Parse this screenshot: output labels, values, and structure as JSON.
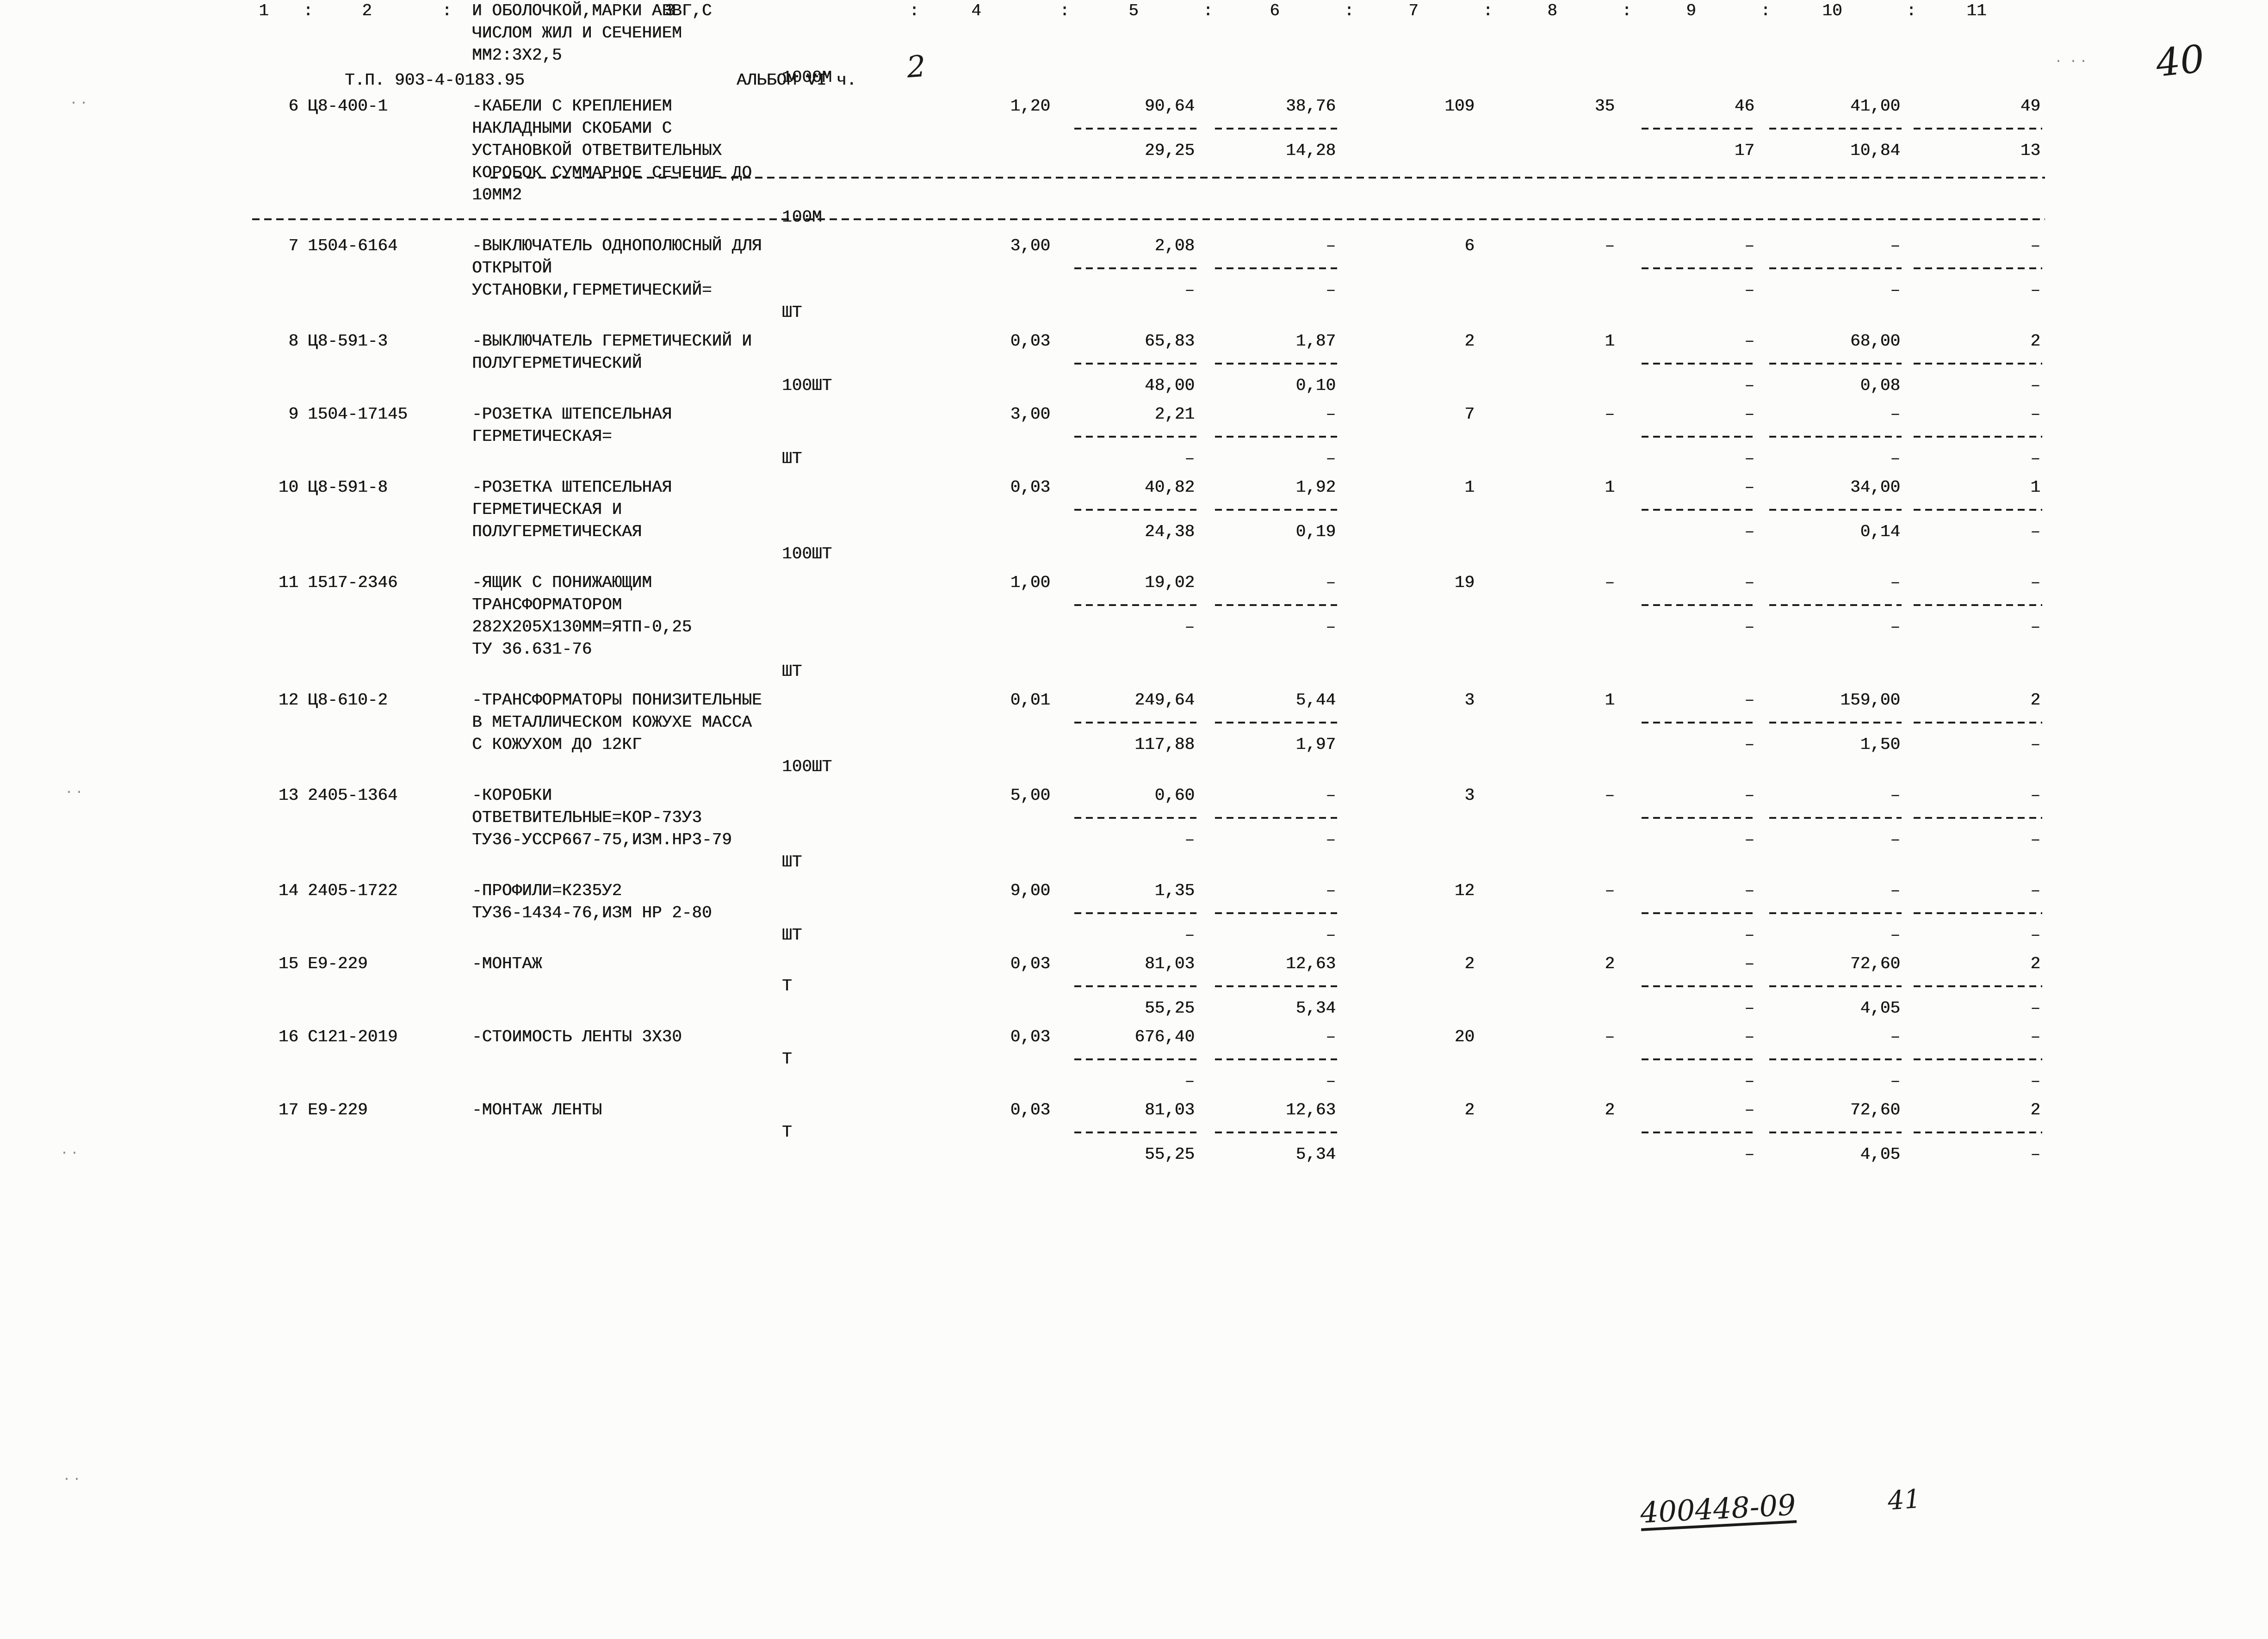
{
  "page": {
    "header": {
      "doc_code": "Т.П. 903-4-0183.95",
      "album": "АЛЬБОМ VI ч.",
      "album_part_handwritten": "2",
      "page_number_handwritten": "40"
    },
    "footer": {
      "stamp_handwritten": "400448-09",
      "sheet_handwritten": "41"
    }
  },
  "table": {
    "column_numbers": [
      "1",
      "2",
      "3",
      "4",
      "5",
      "6",
      "7",
      "8",
      "9",
      "10",
      "11"
    ],
    "column_separator": ":",
    "rows": [
      {
        "num": "",
        "code": "",
        "desc": [
          "И ОБОЛОЧКОЙ,МАРКИ АВВГ,С",
          "ЧИСЛОМ ЖИЛ И СЕЧЕНИЕМ",
          "ММ2:3Х2,5"
        ],
        "unit": "1000М"
      },
      {
        "num": "6",
        "code": "Ц8-400-1",
        "desc": [
          "-КАБЕЛИ С КРЕПЛЕНИЕМ",
          "НАКЛАДНЫМИ СКОБАМИ С",
          "УСТАНОВКОЙ ОТВЕТВИТЕЛЬНЫХ",
          "КОРОБОК СУММАРНОЕ СЕЧЕНИЕ ДО",
          "10ММ2"
        ],
        "unit": "100М",
        "c4": "1,20",
        "c5": [
          "90,64",
          "29,25"
        ],
        "c6": [
          "38,76",
          "14,28"
        ],
        "c7": "109",
        "c8": "35",
        "c9": [
          "46",
          "17"
        ],
        "c10": [
          "41,00",
          "10,84"
        ],
        "c11": [
          "49",
          "13"
        ]
      },
      {
        "num": "7",
        "code": "1504-6164",
        "desc": [
          "-ВЫКЛЮЧАТЕЛЬ ОДНОПОЛЮСНЫЙ ДЛЯ",
          "ОТКРЫТОЙ",
          "УСТАНОВКИ,ГЕРМЕТИЧЕСКИЙ="
        ],
        "unit": "ШТ",
        "c4": "3,00",
        "c5": [
          "2,08",
          "–"
        ],
        "c6": [
          "–",
          "–"
        ],
        "c7": "6",
        "c8": "–",
        "c9": [
          "–",
          "–"
        ],
        "c10": [
          "–",
          "–"
        ],
        "c11": [
          "–",
          "–"
        ]
      },
      {
        "num": "8",
        "code": "Ц8-591-3",
        "desc": [
          "-ВЫКЛЮЧАТЕЛЬ ГЕРМЕТИЧЕСКИЙ И",
          "ПОЛУГЕРМЕТИЧЕСКИЙ"
        ],
        "unit": "100ШТ",
        "c4": "0,03",
        "c5": [
          "65,83",
          "48,00"
        ],
        "c6": [
          "1,87",
          "0,10"
        ],
        "c7": "2",
        "c8": "1",
        "c9": [
          "–",
          "–"
        ],
        "c10": [
          "68,00",
          "0,08"
        ],
        "c11": [
          "2",
          "–"
        ]
      },
      {
        "num": "9",
        "code": "1504-17145",
        "desc": [
          "-РОЗЕТКА ШТЕПСЕЛЬНАЯ",
          "ГЕРМЕТИЧЕСКАЯ="
        ],
        "unit": "ШТ",
        "c4": "3,00",
        "c5": [
          "2,21",
          "–"
        ],
        "c6": [
          "–",
          "–"
        ],
        "c7": "7",
        "c8": "–",
        "c9": [
          "–",
          "–"
        ],
        "c10": [
          "–",
          "–"
        ],
        "c11": [
          "–",
          "–"
        ]
      },
      {
        "num": "10",
        "code": "Ц8-591-8",
        "desc": [
          "-РОЗЕТКА ШТЕПСЕЛЬНАЯ",
          "ГЕРМЕТИЧЕСКАЯ И",
          "ПОЛУГЕРМЕТИЧЕСКАЯ"
        ],
        "unit": "100ШТ",
        "c4": "0,03",
        "c5": [
          "40,82",
          "24,38"
        ],
        "c6": [
          "1,92",
          "0,19"
        ],
        "c7": "1",
        "c8": "1",
        "c9": [
          "–",
          "–"
        ],
        "c10": [
          "34,00",
          "0,14"
        ],
        "c11": [
          "1",
          "–"
        ]
      },
      {
        "num": "11",
        "code": "1517-2346",
        "desc": [
          "-ЯЩИК С ПОНИЖАЮЩИМ",
          "ТРАНСФОРМАТОРОМ",
          "282Х205Х130ММ=ЯТП-0,25",
          "ТУ 36.631-76"
        ],
        "unit": "ШТ",
        "c4": "1,00",
        "c5": [
          "19,02",
          "–"
        ],
        "c6": [
          "–",
          "–"
        ],
        "c7": "19",
        "c8": "–",
        "c9": [
          "–",
          "–"
        ],
        "c10": [
          "–",
          "–"
        ],
        "c11": [
          "–",
          "–"
        ]
      },
      {
        "num": "12",
        "code": "Ц8-610-2",
        "desc": [
          "-ТРАНСФОРМАТОРЫ ПОНИЗИТЕЛЬНЫЕ",
          "В МЕТАЛЛИЧЕСКОМ КОЖУХЕ МАССА",
          "С КОЖУХОМ ДО 12КГ"
        ],
        "unit": "100ШТ",
        "c4": "0,01",
        "c5": [
          "249,64",
          "117,88"
        ],
        "c6": [
          "5,44",
          "1,97"
        ],
        "c7": "3",
        "c8": "1",
        "c9": [
          "–",
          "–"
        ],
        "c10": [
          "159,00",
          "1,50"
        ],
        "c11": [
          "2",
          "–"
        ]
      },
      {
        "num": "13",
        "code": "2405-1364",
        "desc": [
          "-КОРОБКИ",
          "ОТВЕТВИТЕЛЬНЫЕ=КОР-73У3",
          "ТУ36-УССР667-75,ИЗМ.НР3-79"
        ],
        "unit": "ШТ",
        "c4": "5,00",
        "c5": [
          "0,60",
          "–"
        ],
        "c6": [
          "–",
          "–"
        ],
        "c7": "3",
        "c8": "–",
        "c9": [
          "–",
          "–"
        ],
        "c10": [
          "–",
          "–"
        ],
        "c11": [
          "–",
          "–"
        ]
      },
      {
        "num": "14",
        "code": "2405-1722",
        "desc": [
          "-ПРОФИЛИ=К235У2",
          "ТУ36-1434-76,ИЗМ НР 2-80"
        ],
        "unit": "ШТ",
        "c4": "9,00",
        "c5": [
          "1,35",
          "–"
        ],
        "c6": [
          "–",
          "–"
        ],
        "c7": "12",
        "c8": "–",
        "c9": [
          "–",
          "–"
        ],
        "c10": [
          "–",
          "–"
        ],
        "c11": [
          "–",
          "–"
        ]
      },
      {
        "num": "15",
        "code": "Е9-229",
        "desc": [
          "-МОНТАЖ"
        ],
        "unit": "Т",
        "c4": "0,03",
        "c5": [
          "81,03",
          "55,25"
        ],
        "c6": [
          "12,63",
          "5,34"
        ],
        "c7": "2",
        "c8": "2",
        "c9": [
          "–",
          "–"
        ],
        "c10": [
          "72,60",
          "4,05"
        ],
        "c11": [
          "2",
          "–"
        ]
      },
      {
        "num": "16",
        "code": "С121-2019",
        "desc": [
          "-СТОИМОСТЬ ЛЕНТЫ 3Х30"
        ],
        "unit": "Т",
        "c4": "0,03",
        "c5": [
          "676,40",
          "–"
        ],
        "c6": [
          "–",
          "–"
        ],
        "c7": "20",
        "c8": "–",
        "c9": [
          "–",
          "–"
        ],
        "c10": [
          "–",
          "–"
        ],
        "c11": [
          "–",
          "–"
        ]
      },
      {
        "num": "17",
        "code": "Е9-229",
        "desc": [
          "-МОНТАЖ ЛЕНТЫ"
        ],
        "unit": "Т",
        "c4": "0,03",
        "c5": [
          "81,03",
          "55,25"
        ],
        "c6": [
          "12,63",
          "5,34"
        ],
        "c7": "2",
        "c8": "2",
        "c9": [
          "–",
          "–"
        ],
        "c10": [
          "72,60",
          "4,05"
        ],
        "c11": [
          "2",
          "–"
        ]
      }
    ]
  }
}
